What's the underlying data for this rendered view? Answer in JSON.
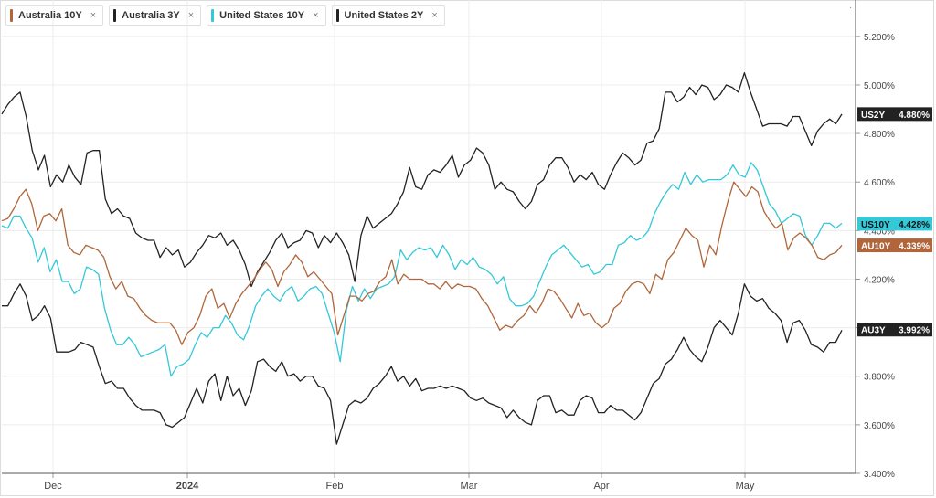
{
  "legend": [
    {
      "label": "Australia 10Y",
      "close": "×",
      "color": "#b0663a"
    },
    {
      "label": "Australia 3Y",
      "close": "×",
      "color": "#222222"
    },
    {
      "label": "United States 10Y",
      "close": "×",
      "color": "#34c8d8"
    },
    {
      "label": "United States 2Y",
      "close": "×",
      "color": "#222222"
    }
  ],
  "menu_glyph": "·",
  "chart_data": {
    "type": "line",
    "x_ticks": [
      "Dec",
      "2024",
      "Feb",
      "Mar",
      "Apr",
      "May"
    ],
    "y_ticks": [
      "5.200%",
      "5.000%",
      "4.800%",
      "4.600%",
      "4.400%",
      "4.200%",
      "4.000%",
      "3.800%",
      "3.600%",
      "3.400%"
    ],
    "ylim": [
      3.4,
      5.35
    ],
    "grid": true,
    "series": [
      {
        "name": "United States 2Y",
        "tag": "US2Y",
        "last": "4.880%",
        "color": "#222222",
        "tag_bg": "#222222",
        "tag_fg": "#ffffff",
        "values": [
          4.88,
          4.92,
          4.95,
          4.97,
          4.87,
          4.73,
          4.65,
          4.71,
          4.58,
          4.63,
          4.6,
          4.67,
          4.62,
          4.59,
          4.72,
          4.73,
          4.73,
          4.53,
          4.47,
          4.49,
          4.46,
          4.45,
          4.39,
          4.37,
          4.36,
          4.36,
          4.29,
          4.33,
          4.3,
          4.32,
          4.25,
          4.27,
          4.31,
          4.34,
          4.38,
          4.37,
          4.39,
          4.34,
          4.36,
          4.32,
          4.26,
          4.17,
          4.23,
          4.27,
          4.31,
          4.36,
          4.39,
          4.33,
          4.35,
          4.36,
          4.4,
          4.39,
          4.33,
          4.38,
          4.35,
          4.39,
          4.35,
          4.3,
          4.19,
          4.38,
          4.46,
          4.41,
          4.43,
          4.45,
          4.47,
          4.51,
          4.56,
          4.66,
          4.58,
          4.57,
          4.63,
          4.65,
          4.64,
          4.67,
          4.71,
          4.62,
          4.67,
          4.69,
          4.74,
          4.72,
          4.67,
          4.57,
          4.6,
          4.57,
          4.56,
          4.52,
          4.49,
          4.52,
          4.59,
          4.61,
          4.67,
          4.7,
          4.7,
          4.66,
          4.6,
          4.63,
          4.61,
          4.64,
          4.59,
          4.57,
          4.63,
          4.68,
          4.72,
          4.7,
          4.67,
          4.69,
          4.76,
          4.77,
          4.82,
          4.97,
          4.97,
          4.93,
          4.95,
          4.99,
          4.96,
          5.0,
          4.99,
          4.94,
          4.96,
          5.0,
          4.99,
          4.97,
          5.05,
          4.97,
          4.9,
          4.83,
          4.84,
          4.84,
          4.84,
          4.83,
          4.87,
          4.87,
          4.81,
          4.75,
          4.81,
          4.84,
          4.86,
          4.84,
          4.88
        ]
      },
      {
        "name": "United States 10Y",
        "tag": "US10Y",
        "last": "4.428%",
        "color": "#34c8d8",
        "tag_bg": "#34c8d8",
        "tag_fg": "#111111",
        "values": [
          4.42,
          4.41,
          4.46,
          4.46,
          4.41,
          4.37,
          4.27,
          4.33,
          4.23,
          4.28,
          4.19,
          4.19,
          4.14,
          4.16,
          4.25,
          4.24,
          4.22,
          4.08,
          3.99,
          3.93,
          3.93,
          3.96,
          3.93,
          3.88,
          3.89,
          3.9,
          3.91,
          3.93,
          3.8,
          3.84,
          3.85,
          3.87,
          3.93,
          3.98,
          3.96,
          4.0,
          4.0,
          4.05,
          4.02,
          3.97,
          3.95,
          4.01,
          4.09,
          4.13,
          4.16,
          4.13,
          4.11,
          4.15,
          4.17,
          4.11,
          4.13,
          4.16,
          4.17,
          4.14,
          4.06,
          3.98,
          3.86,
          4.07,
          4.17,
          4.11,
          4.16,
          4.12,
          4.16,
          4.17,
          4.18,
          4.21,
          4.32,
          4.28,
          4.31,
          4.33,
          4.32,
          4.33,
          4.29,
          4.34,
          4.3,
          4.24,
          4.28,
          4.26,
          4.29,
          4.25,
          4.24,
          4.22,
          4.18,
          4.21,
          4.12,
          4.09,
          4.09,
          4.1,
          4.13,
          4.19,
          4.25,
          4.3,
          4.32,
          4.34,
          4.31,
          4.28,
          4.25,
          4.26,
          4.22,
          4.23,
          4.26,
          4.26,
          4.34,
          4.35,
          4.38,
          4.36,
          4.37,
          4.4,
          4.47,
          4.52,
          4.56,
          4.59,
          4.57,
          4.64,
          4.59,
          4.63,
          4.6,
          4.61,
          4.61,
          4.61,
          4.63,
          4.67,
          4.63,
          4.62,
          4.68,
          4.65,
          4.58,
          4.51,
          4.48,
          4.43,
          4.45,
          4.47,
          4.46,
          4.38,
          4.34,
          4.38,
          4.43,
          4.43,
          4.41,
          4.43
        ]
      },
      {
        "name": "Australia 10Y",
        "tag": "AU10Y",
        "last": "4.339%",
        "color": "#b0663a",
        "tag_bg": "#b0663a",
        "tag_fg": "#ffffff",
        "values": [
          4.44,
          4.45,
          4.49,
          4.54,
          4.57,
          4.51,
          4.4,
          4.46,
          4.47,
          4.44,
          4.49,
          4.34,
          4.31,
          4.3,
          4.34,
          4.33,
          4.32,
          4.29,
          4.21,
          4.16,
          4.19,
          4.13,
          4.12,
          4.08,
          4.05,
          4.03,
          4.02,
          4.02,
          4.02,
          3.99,
          3.93,
          3.98,
          4.0,
          4.05,
          4.13,
          4.16,
          4.08,
          4.1,
          4.04,
          4.1,
          4.14,
          4.17,
          4.2,
          4.24,
          4.27,
          4.24,
          4.17,
          4.23,
          4.26,
          4.3,
          4.27,
          4.21,
          4.23,
          4.2,
          4.17,
          4.14,
          3.97,
          4.05,
          4.13,
          4.13,
          4.11,
          4.14,
          4.15,
          4.19,
          4.21,
          4.28,
          4.18,
          4.22,
          4.2,
          4.2,
          4.2,
          4.18,
          4.18,
          4.16,
          4.19,
          4.16,
          4.18,
          4.17,
          4.17,
          4.16,
          4.12,
          4.09,
          4.04,
          3.99,
          4.01,
          4.0,
          4.03,
          4.05,
          4.09,
          4.06,
          4.1,
          4.16,
          4.15,
          4.12,
          4.08,
          4.04,
          4.1,
          4.05,
          4.06,
          4.02,
          4.0,
          4.02,
          4.08,
          4.1,
          4.15,
          4.18,
          4.19,
          4.18,
          4.14,
          4.22,
          4.2,
          4.28,
          4.31,
          4.36,
          4.41,
          4.38,
          4.36,
          4.25,
          4.34,
          4.3,
          4.42,
          4.52,
          4.6,
          4.57,
          4.54,
          4.58,
          4.56,
          4.48,
          4.44,
          4.41,
          4.43,
          4.32,
          4.37,
          4.39,
          4.37,
          4.34,
          4.29,
          4.28,
          4.3,
          4.31,
          4.34
        ]
      },
      {
        "name": "Australia 3Y",
        "tag": "AU3Y",
        "last": "3.992%",
        "color": "#222222",
        "tag_bg": "#222222",
        "tag_fg": "#ffffff",
        "values": [
          4.09,
          4.09,
          4.14,
          4.18,
          4.13,
          4.03,
          4.05,
          4.09,
          4.04,
          3.9,
          3.9,
          3.9,
          3.91,
          3.94,
          3.93,
          3.92,
          3.84,
          3.77,
          3.78,
          3.75,
          3.75,
          3.71,
          3.68,
          3.66,
          3.66,
          3.66,
          3.65,
          3.6,
          3.59,
          3.61,
          3.63,
          3.69,
          3.75,
          3.69,
          3.78,
          3.81,
          3.7,
          3.8,
          3.72,
          3.75,
          3.68,
          3.74,
          3.86,
          3.87,
          3.84,
          3.82,
          3.86,
          3.8,
          3.81,
          3.78,
          3.8,
          3.8,
          3.76,
          3.75,
          3.7,
          3.52,
          3.6,
          3.68,
          3.7,
          3.69,
          3.71,
          3.75,
          3.77,
          3.8,
          3.84,
          3.78,
          3.8,
          3.76,
          3.79,
          3.74,
          3.75,
          3.75,
          3.76,
          3.75,
          3.76,
          3.75,
          3.74,
          3.71,
          3.7,
          3.71,
          3.69,
          3.68,
          3.67,
          3.63,
          3.66,
          3.63,
          3.61,
          3.6,
          3.7,
          3.72,
          3.72,
          3.65,
          3.66,
          3.64,
          3.64,
          3.7,
          3.72,
          3.71,
          3.65,
          3.65,
          3.68,
          3.66,
          3.66,
          3.64,
          3.62,
          3.65,
          3.71,
          3.77,
          3.79,
          3.85,
          3.87,
          3.91,
          3.96,
          3.91,
          3.88,
          3.86,
          3.92,
          4.0,
          4.03,
          4.0,
          3.97,
          4.06,
          4.18,
          4.13,
          4.11,
          4.12,
          4.08,
          4.06,
          4.03,
          3.94,
          4.02,
          4.03,
          3.99,
          3.93,
          3.92,
          3.9,
          3.94,
          3.94,
          3.99
        ]
      }
    ]
  }
}
